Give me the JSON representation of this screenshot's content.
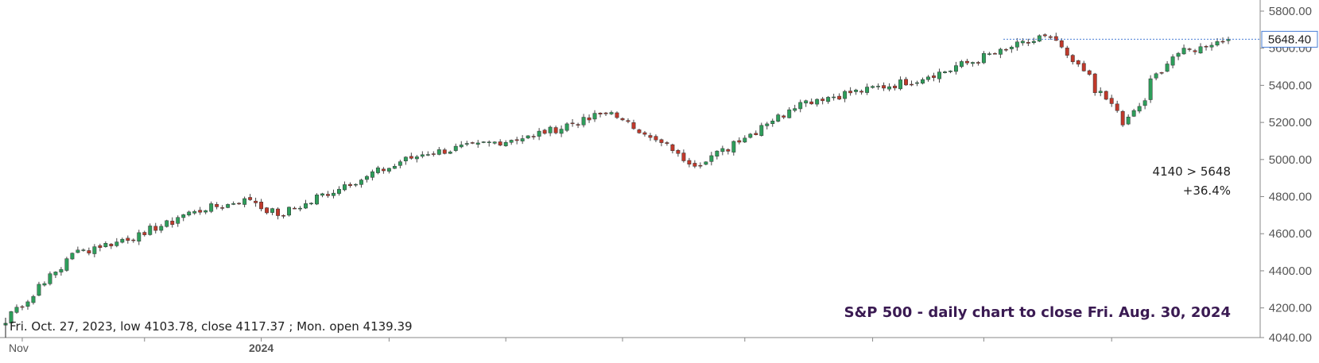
{
  "chart_data": {
    "type": "candlestick",
    "title": "S&P 500 - daily chart to close Fri. Aug. 30, 2024",
    "y_ticks": [
      4040,
      4200,
      4400,
      4600,
      4800,
      5000,
      5200,
      5400,
      5600,
      5800
    ],
    "y_tick_labels": [
      "4040.00",
      "4200.00",
      "4400.00",
      "4600.00",
      "4800.00",
      "5000.00",
      "5200.00",
      "5400.00",
      "5600.00",
      "5800.00"
    ],
    "ylim": [
      4040,
      5860
    ],
    "x_labels": [
      "Nov",
      "2024"
    ],
    "last_price": 5648.4,
    "last_price_label": "5648.40",
    "annotation_change": "4140 > 5648",
    "annotation_pct": "+36.4%",
    "annotation_note": "Fri. Oct. 27, 2023, low 4103.78, close 4117.37 ; Mon. open 4139.39",
    "grid": false,
    "series_anchors": [
      {
        "date": "2023-10-27",
        "close": 4117.37
      },
      {
        "date": "2023-11-14",
        "close": 4495
      },
      {
        "date": "2023-12-01",
        "close": 4594
      },
      {
        "date": "2023-12-14",
        "close": 4720
      },
      {
        "date": "2023-12-28",
        "close": 4783
      },
      {
        "date": "2024-01-05",
        "close": 4697
      },
      {
        "date": "2024-01-19",
        "close": 4840
      },
      {
        "date": "2024-02-09",
        "close": 5026
      },
      {
        "date": "2024-03-08",
        "close": 5124
      },
      {
        "date": "2024-03-28",
        "close": 5254
      },
      {
        "date": "2024-04-19",
        "close": 4967
      },
      {
        "date": "2024-05-15",
        "close": 5308
      },
      {
        "date": "2024-06-14",
        "close": 5431
      },
      {
        "date": "2024-07-16",
        "close": 5667
      },
      {
        "date": "2024-07-26",
        "close": 5459
      },
      {
        "date": "2024-08-05",
        "close": 5186
      },
      {
        "date": "2024-08-16",
        "close": 5554
      },
      {
        "date": "2024-08-30",
        "close": 5648.4
      }
    ]
  },
  "colors": {
    "up": "#2e9e5b",
    "down": "#c0392b",
    "wick": "#444444",
    "axis": "#888888",
    "tick_text": "#555555",
    "price_line": "#4a7fd6",
    "annotation": "#222222",
    "title": "#3a1a52"
  }
}
